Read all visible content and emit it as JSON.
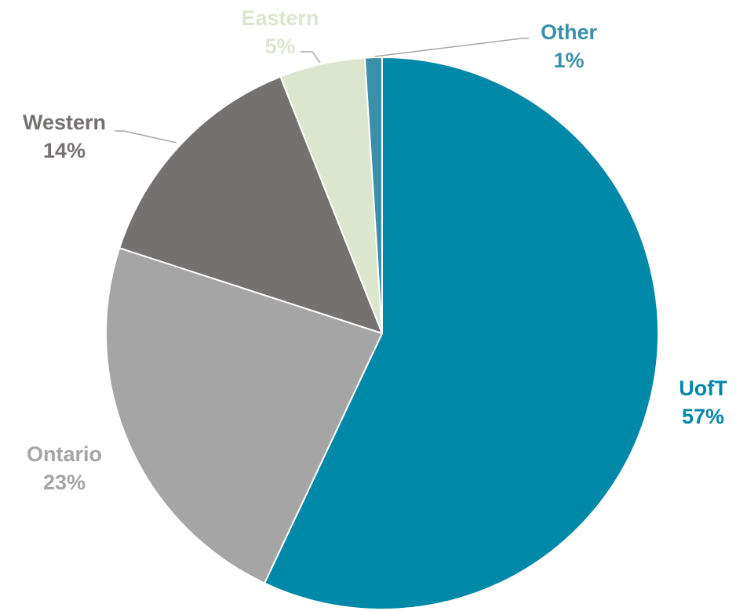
{
  "chart_data": {
    "type": "pie",
    "start_angle_deg": 0,
    "direction": "clockwise",
    "slices": [
      {
        "name": "UofT",
        "value": 57,
        "label_value": "57%",
        "color": "#0088A8"
      },
      {
        "name": "Ontario",
        "value": 23,
        "label_value": "23%",
        "color": "#A5A5A5"
      },
      {
        "name": "Western",
        "value": 14,
        "label_value": "14%",
        "color": "#767171"
      },
      {
        "name": "Eastern",
        "value": 5,
        "label_value": "5%",
        "color": "#DCE6CF"
      },
      {
        "name": "Other",
        "value": 1,
        "label_value": "1%",
        "color": "#3A90AA"
      }
    ],
    "leader_line_color": "#A6A6A6"
  }
}
